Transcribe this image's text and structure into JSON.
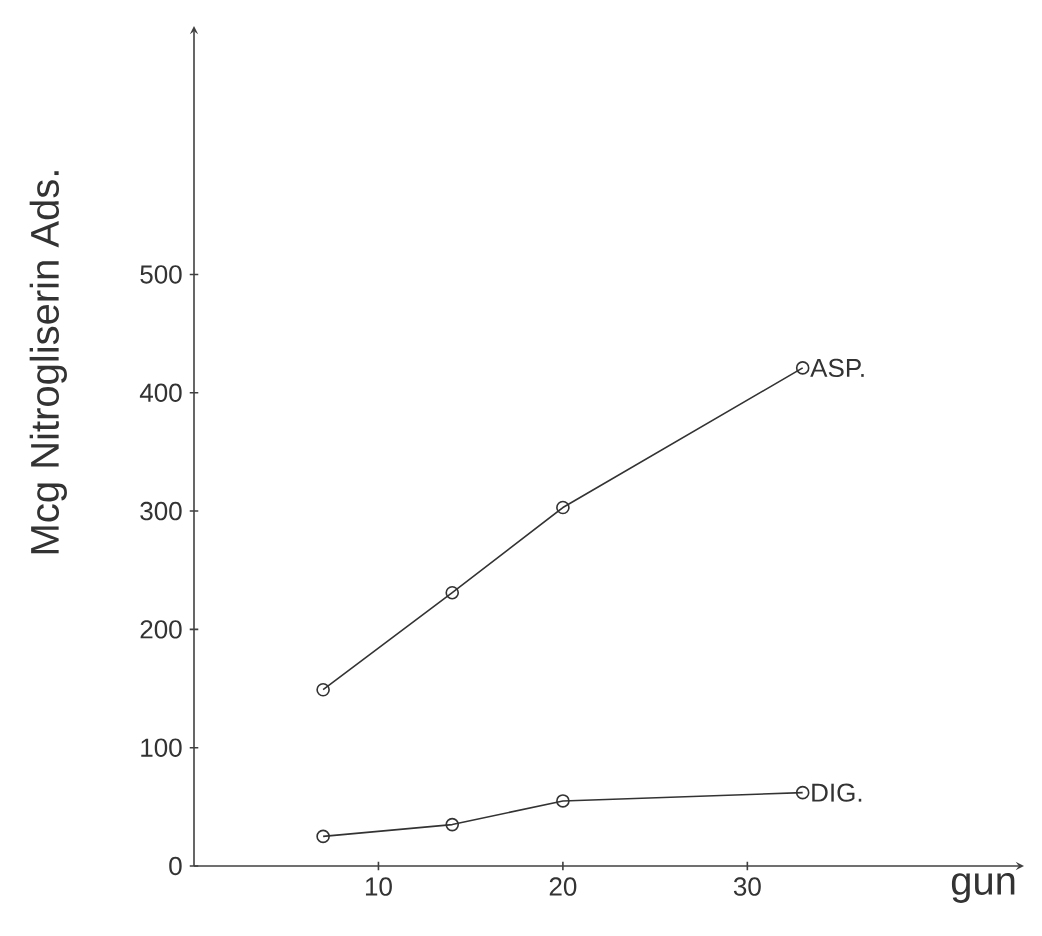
{
  "chart_data": {
    "type": "line",
    "xlabel": "gun",
    "ylabel": "Mcg Nitrogliserin Ads.",
    "x": [
      7,
      14,
      20,
      33
    ],
    "series": [
      {
        "name": "ASP.",
        "color": "#333333",
        "values": [
          149,
          231,
          303,
          421
        ]
      },
      {
        "name": "DIG.",
        "color": "#333333",
        "values": [
          25,
          35,
          55,
          62
        ]
      }
    ],
    "xlim": [
      0,
      45
    ],
    "ylim": [
      0,
      710
    ],
    "xticks": [
      10,
      20,
      30
    ],
    "yticks": [
      0,
      100,
      200,
      300,
      400,
      500
    ],
    "marker": "circle",
    "line_style": "solid",
    "grid": false
  }
}
